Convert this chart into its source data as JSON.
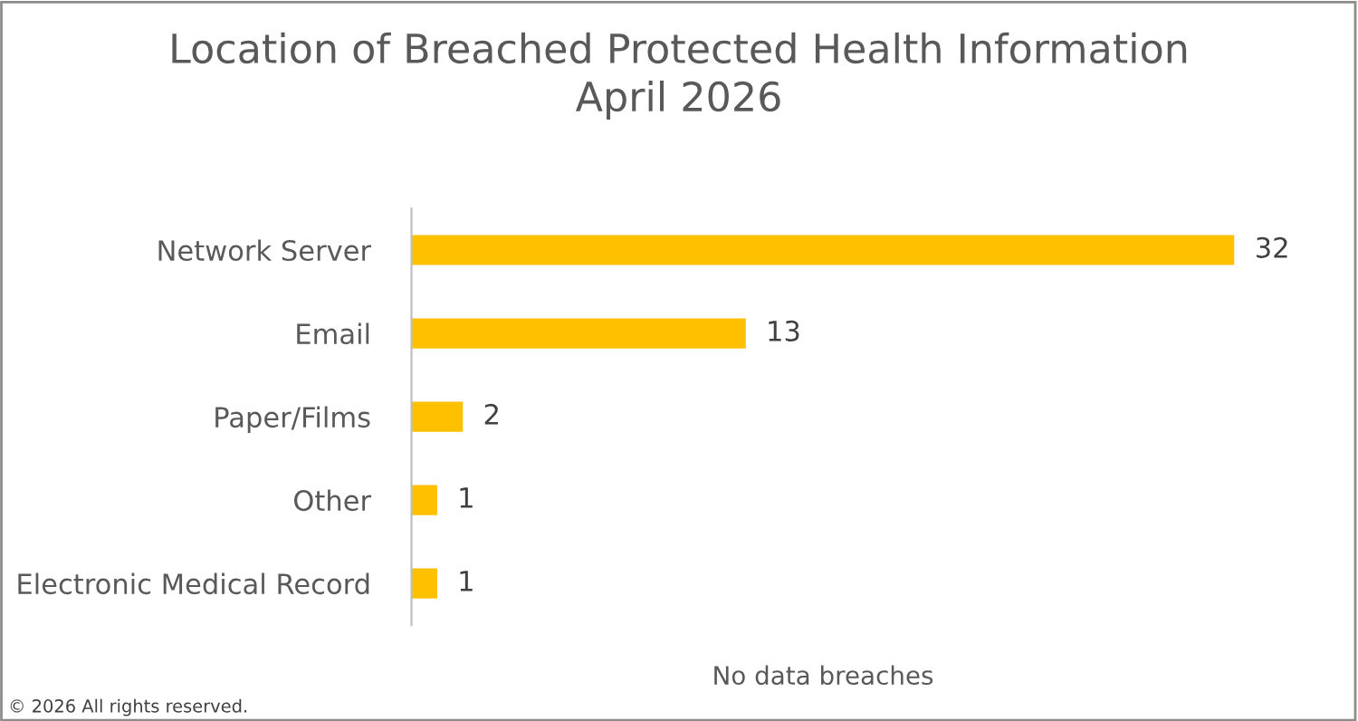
{
  "chart_data": {
    "type": "bar",
    "orientation": "horizontal",
    "title": "Location of Breached Protected Health Information\nApril 2026",
    "xlabel": "No data breaches",
    "categories": [
      "Network Server",
      "Email",
      "Paper/Films",
      "Other",
      "Electronic Medical Record"
    ],
    "values": [
      32,
      13,
      2,
      1,
      1
    ],
    "color": "#ffc000",
    "data_labels": true,
    "grid": false,
    "legend": false,
    "annotations": [
      "© 2026 All rights reserved."
    ]
  }
}
